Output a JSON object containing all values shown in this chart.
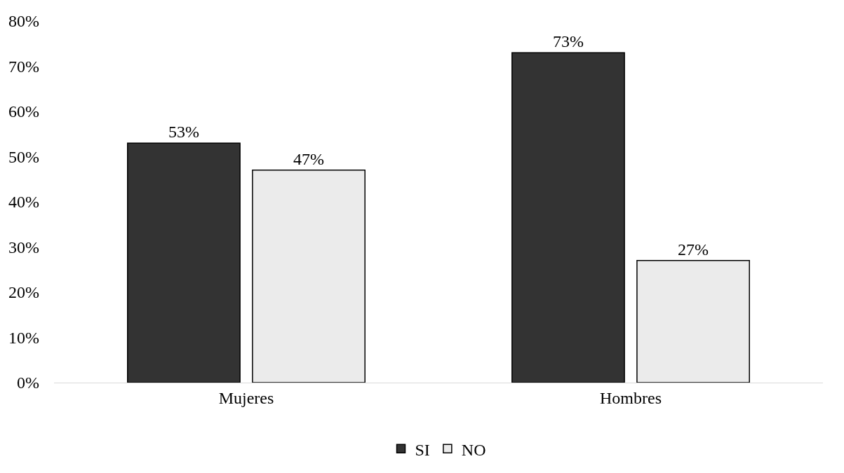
{
  "chart_data": {
    "type": "bar",
    "categories": [
      "Mujeres",
      "Hombres"
    ],
    "series": [
      {
        "name": "SI",
        "color": "#333333",
        "values": [
          53,
          73
        ],
        "value_labels": [
          "53%",
          "73%"
        ]
      },
      {
        "name": "NO",
        "color": "#ebebeb",
        "values": [
          47,
          27
        ],
        "value_labels": [
          "47%",
          "27%"
        ]
      }
    ],
    "ylim": [
      0,
      80
    ],
    "yticks": [
      {
        "value": 0,
        "label": "0%"
      },
      {
        "value": 10,
        "label": "10%"
      },
      {
        "value": 20,
        "label": "20%"
      },
      {
        "value": 30,
        "label": "30%"
      },
      {
        "value": 40,
        "label": "40%"
      },
      {
        "value": 50,
        "label": "50%"
      },
      {
        "value": 60,
        "label": "60%"
      },
      {
        "value": 70,
        "label": "70%"
      },
      {
        "value": 80,
        "label": "80%"
      }
    ],
    "legend": "bottom"
  }
}
